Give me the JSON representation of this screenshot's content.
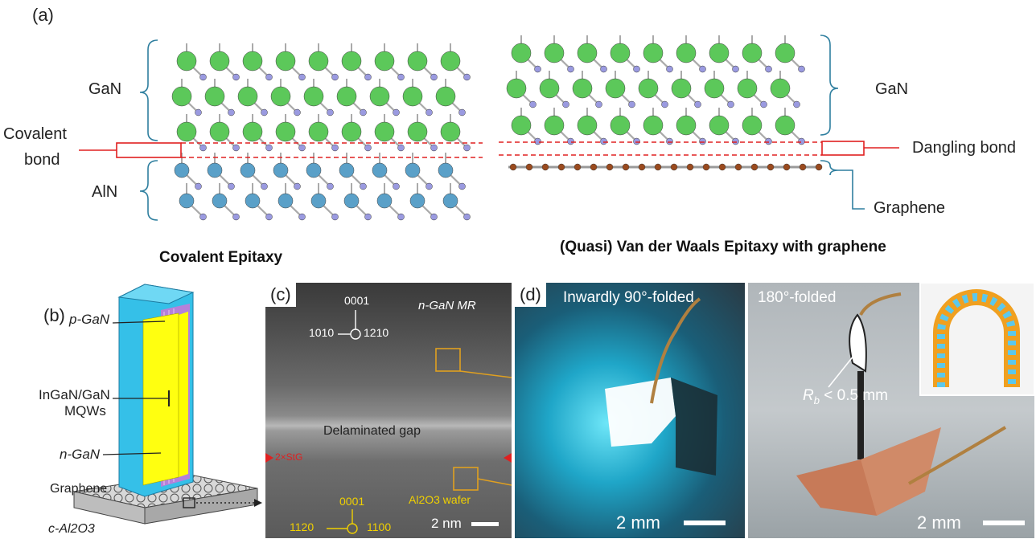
{
  "panel_a": {
    "label": "(a)",
    "left": {
      "top_label": "GaN",
      "interface_label_line1": "Covalent",
      "interface_label_line2": "bond",
      "bottom_label": "AlN",
      "caption": "Covalent Epitaxy"
    },
    "right": {
      "top_label": "GaN",
      "interface_label": "Dangling bond",
      "bottom_label": "Graphene",
      "caption": "(Quasi) Van der Waals Epitaxy with graphene"
    },
    "colors": {
      "ga": "#5cc85a",
      "n": "#9a9ae0",
      "al": "#5aa0c8",
      "c": "#9a4a1e",
      "bracket": "#2f7f9f",
      "bond_line": "#e02020"
    }
  },
  "panel_b": {
    "label": "(b)",
    "layers": [
      "p-GaN",
      "InGaN/GaN",
      "MQWs",
      "n-GaN",
      "Graphene",
      "c-Al2O3"
    ]
  },
  "panel_c": {
    "label": "(c)",
    "top_dir": "0001",
    "dir_left": "1010",
    "dir_right": "1210",
    "region_top": "n-GaN MR",
    "gap_label": "Delaminated gap",
    "stl_label": "2×StG",
    "bot_dir": "0001",
    "bot_left": "1120",
    "bot_right": "1100",
    "substrate": "Al2O3 wafer",
    "scale": "2 nm"
  },
  "panel_d": {
    "label": "(d)",
    "left_title": "Inwardly 90°-folded",
    "left_scale": "2 mm",
    "right_title": "180°-folded",
    "radius": "R",
    "radius_sub": "b",
    "radius_val": " < 0.5 mm",
    "right_scale": "2 mm"
  }
}
